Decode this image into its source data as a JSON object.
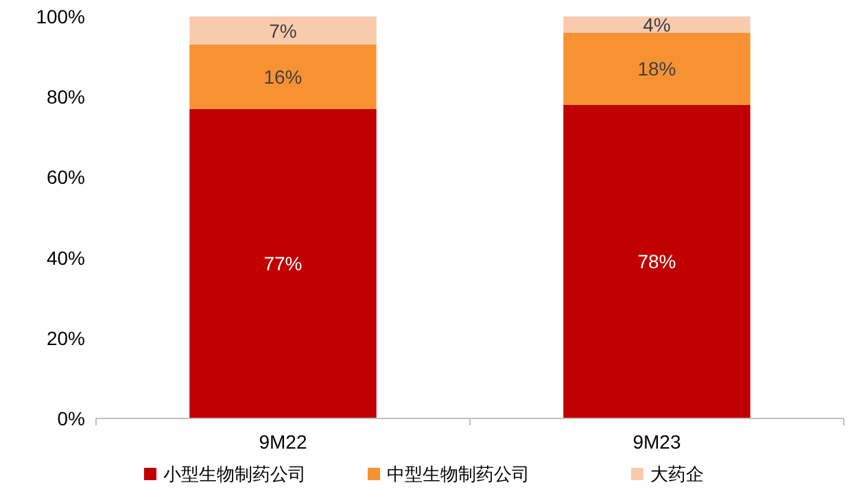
{
  "chart_data": {
    "type": "bar",
    "stacked": true,
    "categories": [
      "9M22",
      "9M23"
    ],
    "series": [
      {
        "name": "小型生物制药公司",
        "color": "#c00000",
        "values": [
          77,
          78
        ],
        "value_labels": [
          "77%",
          "78%"
        ]
      },
      {
        "name": "中型生物制药公司",
        "color": "#f79232",
        "values": [
          16,
          18
        ],
        "value_labels": [
          "16%",
          "18%"
        ]
      },
      {
        "name": "大药企",
        "color": "#f8cbad",
        "values": [
          7,
          4
        ],
        "value_labels": [
          "7%",
          "4%"
        ]
      }
    ],
    "ylim": [
      0,
      100
    ],
    "yticks": [
      {
        "value": 0,
        "label": "0%"
      },
      {
        "value": 20,
        "label": "20%"
      },
      {
        "value": 40,
        "label": "40%"
      },
      {
        "value": 60,
        "label": "60%"
      },
      {
        "value": 80,
        "label": "80%"
      },
      {
        "value": 100,
        "label": "100%"
      }
    ],
    "legend": "bottom"
  }
}
